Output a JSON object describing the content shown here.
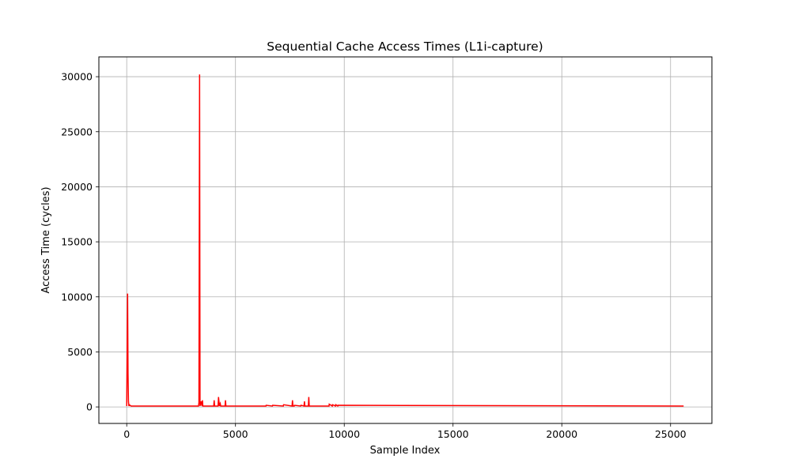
{
  "chart_data": {
    "type": "line",
    "title": "Sequential Cache Access Times (L1i-capture)",
    "xlabel": "Sample Index",
    "ylabel": "Access Time (cycles)",
    "xlim": [
      -1280,
      26900
    ],
    "ylim": [
      -1500,
      31800
    ],
    "xticks": [
      0,
      5000,
      10000,
      15000,
      20000,
      25000
    ],
    "yticks": [
      0,
      5000,
      10000,
      15000,
      20000,
      25000,
      30000
    ],
    "grid": true,
    "baseline": 80,
    "series": [
      {
        "color": "#ff0000",
        "x": [
          0,
          40,
          60,
          80,
          100,
          120,
          200,
          3300,
          3320,
          3350,
          3370,
          3420,
          3460,
          3480,
          3500,
          3600,
          4000,
          4020,
          4040,
          4080,
          4200,
          4220,
          4260,
          4300,
          4320,
          4350,
          4520,
          4540,
          4560,
          4700,
          6400,
          6410,
          6700,
          6710,
          7200,
          7210,
          7600,
          7620,
          7640,
          7700,
          7710,
          8000,
          8010,
          8150,
          8170,
          8190,
          8350,
          8370,
          8390,
          9300,
          9310,
          9450,
          9460,
          9600,
          9610,
          9700,
          9710,
          25600
        ],
        "y": [
          80,
          10300,
          3000,
          500,
          80,
          200,
          80,
          80,
          400,
          30200,
          80,
          500,
          80,
          600,
          80,
          80,
          80,
          600,
          80,
          80,
          80,
          900,
          80,
          300,
          80,
          80,
          80,
          600,
          80,
          80,
          80,
          150,
          80,
          150,
          80,
          200,
          80,
          600,
          80,
          80,
          150,
          80,
          150,
          80,
          500,
          80,
          80,
          900,
          80,
          80,
          250,
          80,
          200,
          80,
          200,
          80,
          150,
          80
        ]
      }
    ]
  }
}
